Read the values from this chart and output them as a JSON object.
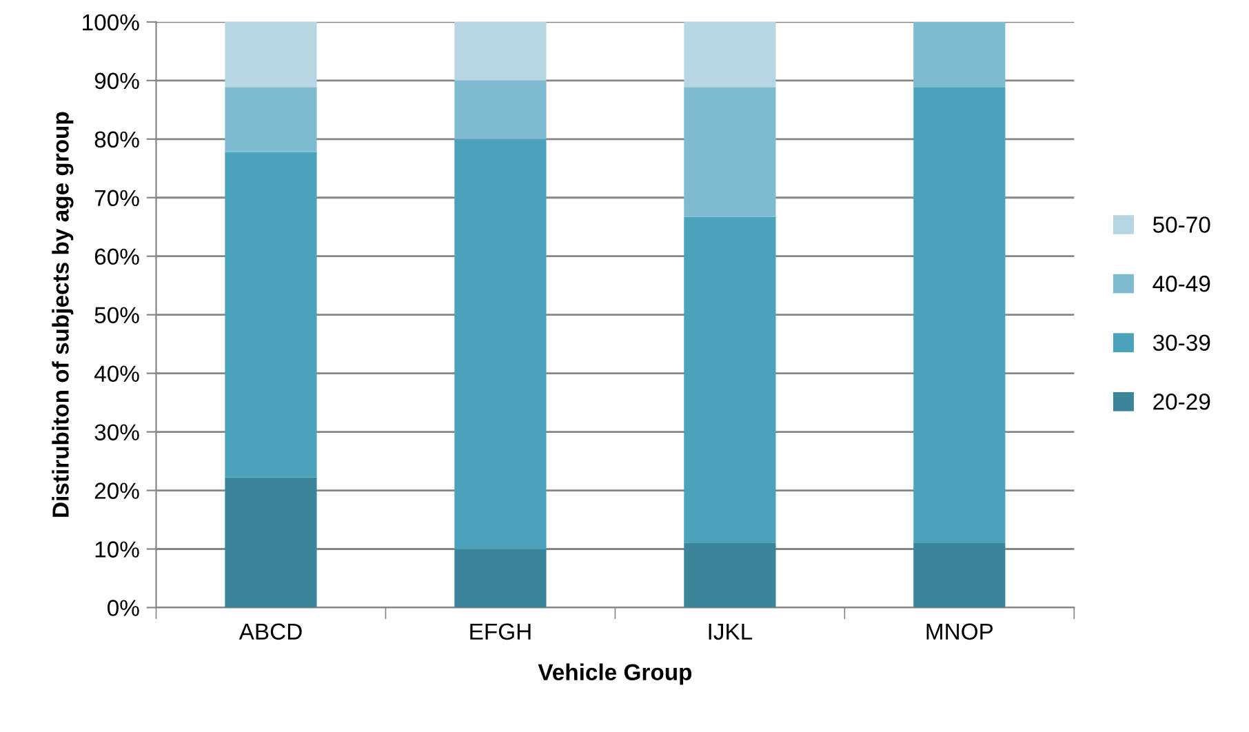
{
  "chart_data": {
    "type": "bar",
    "stacked": true,
    "xlabel": "Vehicle Group",
    "ylabel": "Distirubiton of subjects by age group",
    "categories": [
      "ABCD",
      "EFGH",
      "IJKL",
      "MNOP"
    ],
    "series": [
      {
        "name": "20-29",
        "color": "#3a8599",
        "values": [
          22.2,
          10,
          11.1,
          11.1
        ]
      },
      {
        "name": "30-39",
        "color": "#4aa3bb",
        "values": [
          55.6,
          70,
          55.6,
          77.8
        ]
      },
      {
        "name": "40-49",
        "color": "#7fbbd0",
        "values": [
          11.1,
          10,
          22.2,
          11.1
        ]
      },
      {
        "name": "50-70",
        "color": "#b6d7e2",
        "values": [
          11.1,
          10,
          11.1,
          0
        ]
      }
    ],
    "ylim": [
      0,
      100
    ],
    "yticks": [
      {
        "value": 0,
        "label": "0%"
      },
      {
        "value": 10,
        "label": "10%"
      },
      {
        "value": 20,
        "label": "20%"
      },
      {
        "value": 30,
        "label": "30%"
      },
      {
        "value": 40,
        "label": "40%"
      },
      {
        "value": 50,
        "label": "50%"
      },
      {
        "value": 60,
        "label": "60%"
      },
      {
        "value": 70,
        "label": "70%"
      },
      {
        "value": 80,
        "label": "80%"
      },
      {
        "value": 90,
        "label": "90%"
      },
      {
        "value": 100,
        "label": "100%"
      }
    ],
    "grid": "y",
    "legend": "right"
  }
}
